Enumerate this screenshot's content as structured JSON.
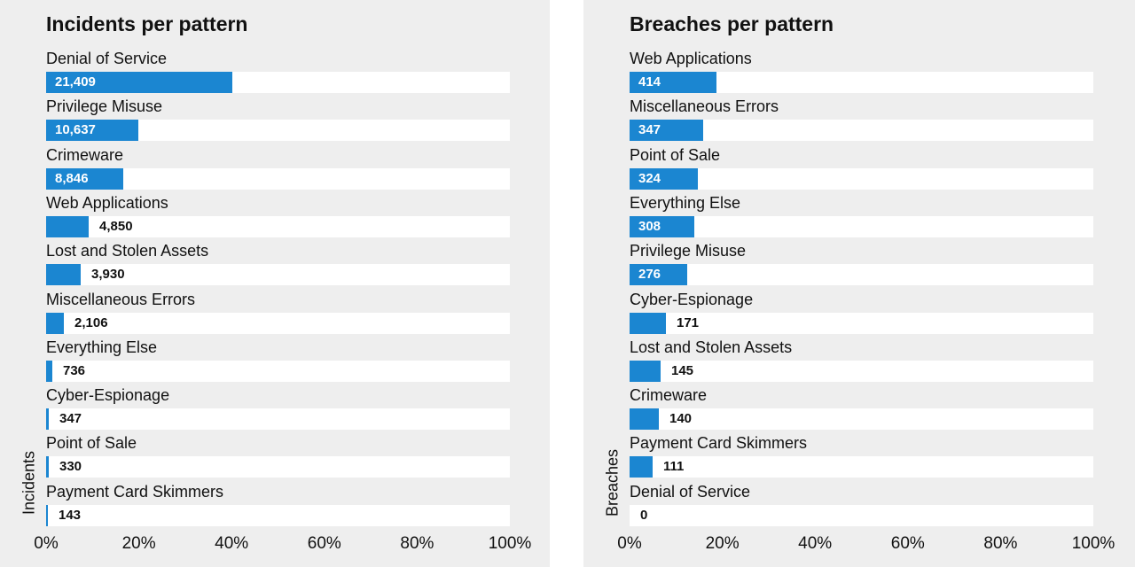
{
  "colors": {
    "panel_bg": "#eeeeee",
    "bar": "#1b86d1",
    "track": "#ffffff"
  },
  "chart_data": [
    {
      "type": "bar",
      "orientation": "horizontal",
      "title": "Incidents per pattern",
      "ylabel": "Incidents",
      "xlim": [
        0,
        100
      ],
      "xticks": [
        "0%",
        "20%",
        "40%",
        "60%",
        "80%",
        "100%"
      ],
      "categories": [
        "Denial of Service",
        "Privilege Misuse",
        "Crimeware",
        "Web Applications",
        "Lost and Stolen Assets",
        "Miscellaneous Errors",
        "Everything Else",
        "Cyber-Espionage",
        "Point of Sale",
        "Payment Card Skimmers"
      ],
      "values": [
        21409,
        10637,
        8846,
        4850,
        3930,
        2106,
        736,
        347,
        330,
        143
      ],
      "value_labels": [
        "21,409",
        "10,637",
        "8,846",
        "4,850",
        "3,930",
        "2,106",
        "736",
        "347",
        "330",
        "143"
      ],
      "percent": [
        40.1,
        19.9,
        16.6,
        9.1,
        7.4,
        3.9,
        1.4,
        0.6,
        0.6,
        0.3
      ]
    },
    {
      "type": "bar",
      "orientation": "horizontal",
      "title": "Breaches per pattern",
      "ylabel": "Breaches",
      "xlim": [
        0,
        100
      ],
      "xticks": [
        "0%",
        "20%",
        "40%",
        "60%",
        "80%",
        "100%"
      ],
      "categories": [
        "Web Applications",
        "Miscellaneous Errors",
        "Point of Sale",
        "Everything Else",
        "Privilege Misuse",
        "Cyber-Espionage",
        "Lost and Stolen Assets",
        "Crimeware",
        "Payment Card Skimmers",
        "Denial of Service"
      ],
      "values": [
        414,
        347,
        324,
        308,
        276,
        171,
        145,
        140,
        111,
        0
      ],
      "value_labels": [
        "414",
        "347",
        "324",
        "308",
        "276",
        "171",
        "145",
        "140",
        "111",
        "0"
      ],
      "percent": [
        18.8,
        15.8,
        14.7,
        14.0,
        12.5,
        7.8,
        6.6,
        6.4,
        5.0,
        0.0
      ]
    }
  ]
}
